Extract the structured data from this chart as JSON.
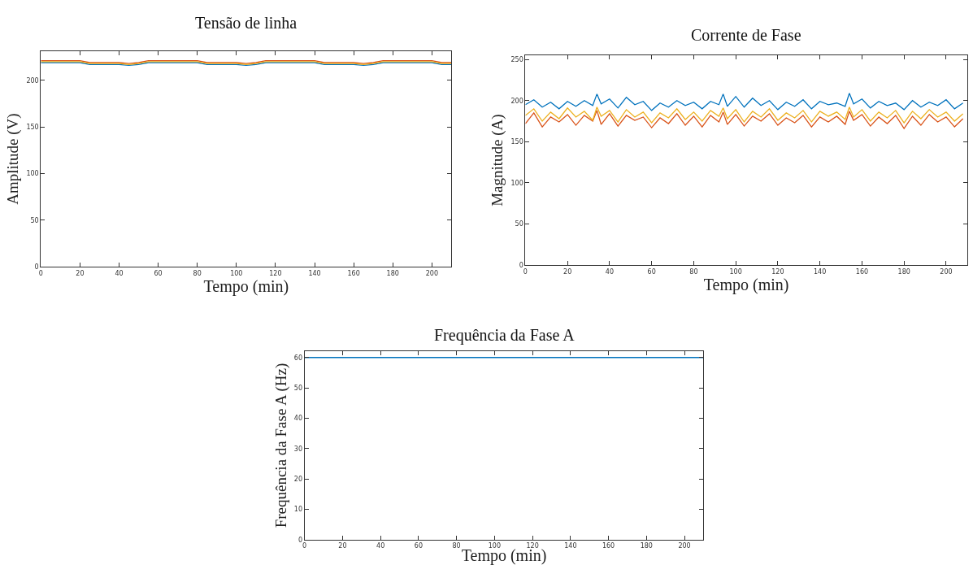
{
  "chart_data": [
    {
      "type": "line",
      "title": "Tensão de linha",
      "xlabel": "Tempo (min)",
      "ylabel": "Amplitude (V)",
      "xlim": [
        0,
        210
      ],
      "ylim": [
        0,
        231
      ],
      "xticks": [
        0,
        20,
        40,
        60,
        80,
        100,
        120,
        140,
        160,
        180,
        200
      ],
      "yticks": [
        0,
        50,
        100,
        150,
        200
      ],
      "x": [
        0,
        5,
        10,
        15,
        20,
        25,
        30,
        35,
        40,
        45,
        50,
        55,
        60,
        65,
        70,
        75,
        80,
        85,
        90,
        95,
        100,
        105,
        110,
        115,
        120,
        125,
        130,
        135,
        140,
        145,
        150,
        155,
        160,
        165,
        170,
        175,
        180,
        185,
        190,
        195,
        200,
        205,
        210
      ],
      "series": [
        {
          "color": "#0072bd",
          "values": [
            219,
            219,
            219,
            219,
            219,
            217,
            217,
            217,
            217,
            216,
            217,
            219,
            219,
            219,
            219,
            219,
            219,
            217,
            217,
            217,
            217,
            216,
            217,
            219,
            219,
            219,
            219,
            219,
            219,
            217,
            217,
            217,
            217,
            216,
            217,
            219,
            219,
            219,
            219,
            219,
            219,
            217,
            217
          ]
        },
        {
          "color": "#d95319",
          "values": [
            221,
            221,
            221,
            221,
            221,
            219,
            219,
            219,
            219,
            218,
            219,
            221,
            221,
            221,
            221,
            221,
            221,
            219,
            219,
            219,
            219,
            218,
            219,
            221,
            221,
            221,
            221,
            221,
            221,
            219,
            219,
            219,
            219,
            218,
            219,
            221,
            221,
            221,
            221,
            221,
            221,
            219,
            219
          ]
        },
        {
          "color": "#edb120",
          "values": [
            220,
            220,
            220,
            220,
            220,
            218,
            218,
            218,
            218,
            217,
            218,
            220,
            220,
            220,
            220,
            220,
            220,
            218,
            218,
            218,
            218,
            217,
            218,
            220,
            220,
            220,
            220,
            220,
            220,
            218,
            218,
            218,
            218,
            217,
            218,
            220,
            220,
            220,
            220,
            220,
            220,
            218,
            218
          ]
        }
      ]
    },
    {
      "type": "line",
      "title": "Corrente de Fase",
      "xlabel": "Tempo (min)",
      "ylabel": "Magnitude (A)",
      "xlim": [
        0,
        210
      ],
      "ylim": [
        0,
        255
      ],
      "xticks": [
        0,
        20,
        40,
        60,
        80,
        100,
        120,
        140,
        160,
        180,
        200
      ],
      "yticks": [
        0,
        50,
        100,
        150,
        200,
        250
      ],
      "x": [
        0,
        4,
        8,
        12,
        16,
        20,
        24,
        28,
        32,
        34,
        36,
        40,
        44,
        48,
        52,
        56,
        60,
        64,
        68,
        72,
        76,
        80,
        84,
        88,
        92,
        94,
        96,
        100,
        104,
        108,
        112,
        116,
        120,
        124,
        128,
        132,
        136,
        140,
        144,
        148,
        152,
        154,
        156,
        160,
        164,
        168,
        172,
        176,
        180,
        184,
        188,
        192,
        196,
        200,
        204,
        208
      ],
      "series": [
        {
          "color": "#0072bd",
          "values": [
            195,
            201,
            192,
            198,
            190,
            199,
            193,
            200,
            194,
            208,
            196,
            202,
            191,
            204,
            195,
            199,
            188,
            197,
            192,
            200,
            194,
            198,
            190,
            199,
            195,
            208,
            193,
            205,
            192,
            203,
            194,
            200,
            189,
            198,
            193,
            201,
            190,
            199,
            195,
            197,
            193,
            209,
            196,
            202,
            191,
            199,
            194,
            197,
            189,
            200,
            192,
            198,
            194,
            201,
            190,
            197
          ]
        },
        {
          "color": "#d95319",
          "values": [
            172,
            185,
            168,
            180,
            174,
            183,
            170,
            182,
            175,
            188,
            171,
            184,
            169,
            182,
            176,
            180,
            167,
            179,
            172,
            184,
            170,
            181,
            168,
            182,
            174,
            186,
            171,
            183,
            169,
            181,
            175,
            184,
            170,
            179,
            173,
            182,
            168,
            180,
            174,
            181,
            171,
            187,
            176,
            183,
            169,
            180,
            172,
            182,
            166,
            181,
            170,
            183,
            174,
            180,
            168,
            178
          ]
        },
        {
          "color": "#edb120",
          "values": [
            182,
            190,
            175,
            186,
            178,
            191,
            180,
            187,
            176,
            192,
            181,
            188,
            174,
            189,
            180,
            186,
            173,
            185,
            179,
            190,
            177,
            186,
            175,
            188,
            181,
            191,
            178,
            189,
            174,
            187,
            180,
            190,
            176,
            185,
            179,
            188,
            174,
            187,
            181,
            186,
            177,
            192,
            180,
            189,
            175,
            186,
            179,
            188,
            173,
            187,
            178,
            189,
            180,
            186,
            175,
            184
          ]
        }
      ]
    },
    {
      "type": "line",
      "title": "Frequência da Fase A",
      "xlabel": "Tempo (min)",
      "ylabel": "Frequência da Fase A (Hz)",
      "xlim": [
        0,
        210
      ],
      "ylim": [
        0,
        62
      ],
      "xticks": [
        0,
        20,
        40,
        60,
        80,
        100,
        120,
        140,
        160,
        180,
        200
      ],
      "yticks": [
        0,
        10,
        20,
        30,
        40,
        50,
        60
      ],
      "x": [
        0,
        210
      ],
      "series": [
        {
          "color": "#0072bd",
          "values": [
            60,
            60
          ]
        }
      ]
    }
  ]
}
